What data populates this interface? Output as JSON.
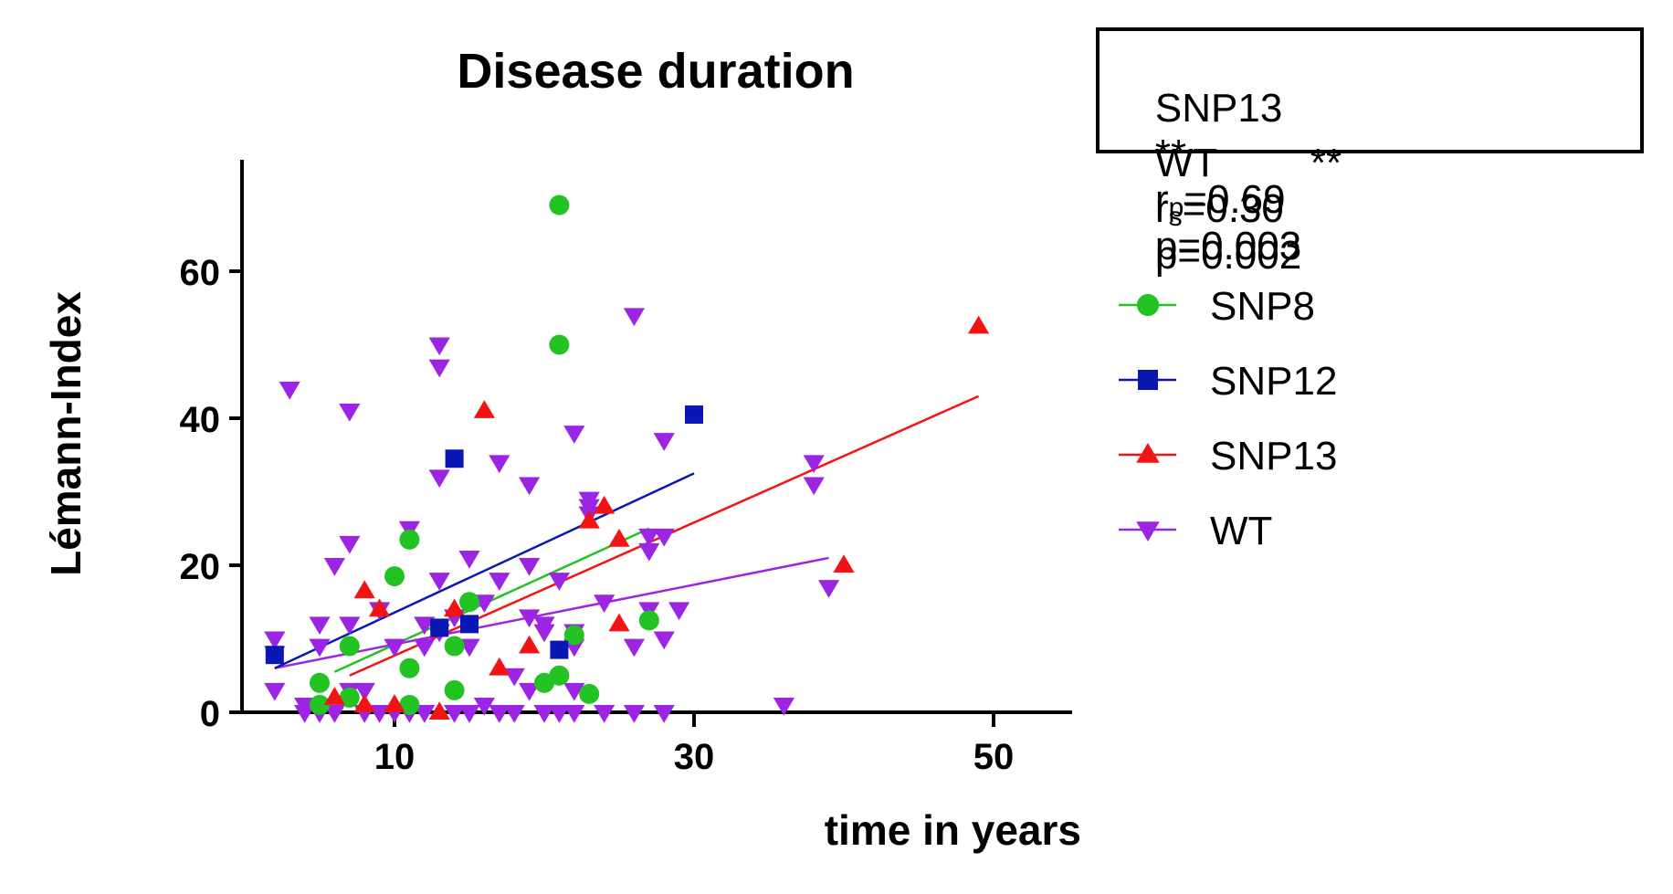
{
  "chart_data": {
    "type": "scatter",
    "title": "Disease duration",
    "xlabel": "time in years",
    "ylabel": "Lémann-Index",
    "xlim": [
      0,
      56
    ],
    "ylim": [
      0,
      75
    ],
    "xticks": [
      10,
      30,
      50
    ],
    "yticks": [
      0,
      20,
      40,
      60
    ],
    "legend_position": "right",
    "grid": false,
    "stats": [
      {
        "group": "SNP13",
        "stars": "**",
        "r_sym": "r",
        "r_sub": "p",
        "r_val": "=0.69",
        "p_text": "p=0.003"
      },
      {
        "group": "WT",
        "stars": "**",
        "r_sym": "r",
        "r_sub": "s",
        "r_val": "=0.30",
        "p_text": "p=0.002"
      }
    ],
    "series": [
      {
        "name": "SNP8",
        "marker": "circle",
        "color": "#22c322",
        "points": [
          [
            5,
            4
          ],
          [
            5,
            1
          ],
          [
            7,
            9
          ],
          [
            7,
            2
          ],
          [
            10,
            18.5
          ],
          [
            11,
            23.5
          ],
          [
            11,
            6
          ],
          [
            11,
            1
          ],
          [
            14,
            9
          ],
          [
            14,
            3
          ],
          [
            15,
            15
          ],
          [
            20,
            4
          ],
          [
            21,
            5
          ],
          [
            21,
            50
          ],
          [
            21,
            69
          ],
          [
            22,
            10.5
          ],
          [
            23,
            2.5
          ],
          [
            27,
            12.5
          ]
        ],
        "fit": [
          [
            6,
            5.5
          ],
          [
            27,
            25
          ]
        ]
      },
      {
        "name": "SNP12",
        "marker": "square",
        "color": "#0a17b4",
        "points": [
          [
            2,
            7.8
          ],
          [
            13,
            11.5
          ],
          [
            14,
            34.5
          ],
          [
            15,
            12
          ],
          [
            21,
            8.5
          ],
          [
            30,
            40.5
          ]
        ],
        "fit": [
          [
            2,
            6
          ],
          [
            30,
            32.5
          ]
        ]
      },
      {
        "name": "SNP13",
        "marker": "triangle-up",
        "color": "#f21414",
        "points": [
          [
            6,
            2
          ],
          [
            8,
            16.5
          ],
          [
            8,
            1
          ],
          [
            9,
            14
          ],
          [
            10,
            1
          ],
          [
            13,
            0
          ],
          [
            14,
            14
          ],
          [
            16,
            41
          ],
          [
            17,
            6
          ],
          [
            19,
            9
          ],
          [
            23,
            26
          ],
          [
            24,
            28
          ],
          [
            25,
            12
          ],
          [
            25,
            23.5
          ],
          [
            40,
            20
          ],
          [
            49,
            52.5
          ]
        ],
        "fit": [
          [
            7,
            5
          ],
          [
            49,
            43
          ]
        ]
      },
      {
        "name": "WT",
        "marker": "triangle-down",
        "color": "#9b25e3",
        "points": [
          [
            2,
            10
          ],
          [
            2,
            8
          ],
          [
            2,
            3
          ],
          [
            3,
            44
          ],
          [
            4,
            1
          ],
          [
            4,
            0
          ],
          [
            5,
            12
          ],
          [
            5,
            9
          ],
          [
            5,
            0
          ],
          [
            6,
            20
          ],
          [
            6,
            0
          ],
          [
            7,
            41
          ],
          [
            7,
            23
          ],
          [
            7,
            12
          ],
          [
            7,
            3
          ],
          [
            8,
            3
          ],
          [
            8,
            0
          ],
          [
            9,
            14
          ],
          [
            9,
            0
          ],
          [
            10,
            9
          ],
          [
            10,
            0
          ],
          [
            11,
            25
          ],
          [
            11,
            0
          ],
          [
            12,
            12
          ],
          [
            12,
            9
          ],
          [
            12,
            0
          ],
          [
            13,
            50
          ],
          [
            13,
            47
          ],
          [
            13,
            32
          ],
          [
            13,
            18
          ],
          [
            13,
            11
          ],
          [
            14,
            13
          ],
          [
            14,
            0
          ],
          [
            15,
            21
          ],
          [
            15,
            9
          ],
          [
            15,
            0
          ],
          [
            16,
            15
          ],
          [
            16,
            1
          ],
          [
            17,
            34
          ],
          [
            17,
            18
          ],
          [
            17,
            0
          ],
          [
            18,
            5
          ],
          [
            18,
            0
          ],
          [
            19,
            31
          ],
          [
            19,
            20
          ],
          [
            19,
            13
          ],
          [
            19,
            3
          ],
          [
            20,
            12
          ],
          [
            20,
            11
          ],
          [
            20,
            0
          ],
          [
            21,
            18
          ],
          [
            21,
            0
          ],
          [
            22,
            38
          ],
          [
            22,
            11
          ],
          [
            22,
            9
          ],
          [
            22,
            3
          ],
          [
            22,
            0
          ],
          [
            23,
            29
          ],
          [
            23,
            28
          ],
          [
            23,
            27
          ],
          [
            24,
            15
          ],
          [
            24,
            0
          ],
          [
            26,
            54
          ],
          [
            26,
            9
          ],
          [
            26,
            0
          ],
          [
            27,
            24
          ],
          [
            27,
            22
          ],
          [
            27,
            14
          ],
          [
            28,
            37
          ],
          [
            28,
            24
          ],
          [
            28,
            10
          ],
          [
            28,
            0
          ],
          [
            29,
            14
          ],
          [
            36,
            1
          ],
          [
            38,
            34
          ],
          [
            38,
            31
          ],
          [
            39,
            17
          ]
        ],
        "fit": [
          [
            2,
            6
          ],
          [
            39,
            21
          ]
        ]
      }
    ]
  }
}
